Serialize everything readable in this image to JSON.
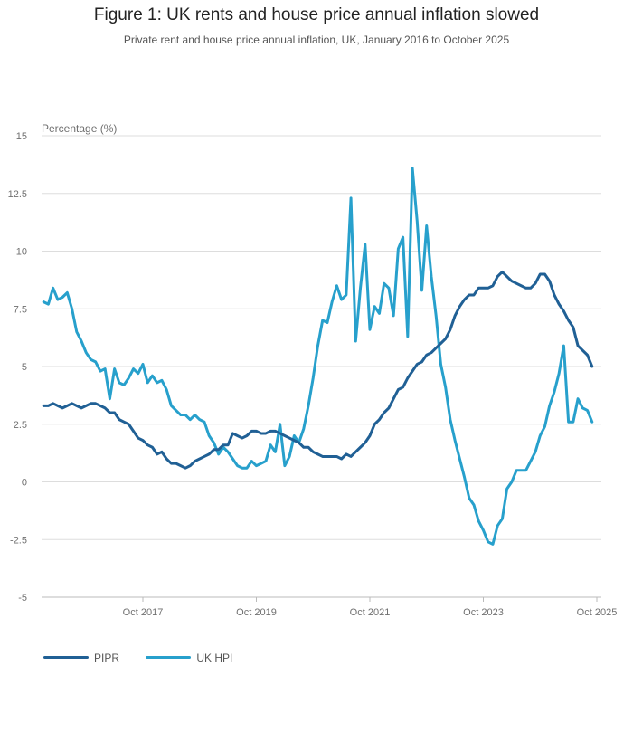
{
  "chart_data": {
    "type": "line",
    "title": "Figure 1: UK rents and house price annual inflation slowed",
    "subtitle": "Private rent and house price annual inflation, UK, January 2016 to October 2025",
    "ylabel": "Percentage (%)",
    "xlabel": "",
    "ylim": [
      -5,
      15
    ],
    "yticks": [
      -5,
      -2.5,
      0,
      2.5,
      5,
      7.5,
      10,
      12.5,
      15
    ],
    "ytick_labels": [
      "-5",
      "-2.5",
      "0",
      "2.5",
      "5",
      "7.5",
      "10",
      "12.5",
      "15"
    ],
    "x_start": "Jan 2016",
    "x_end": "Oct 2025",
    "xtick_labels": [
      "Oct 2017",
      "Oct 2019",
      "Oct 2021",
      "Oct 2023",
      "Oct 2025"
    ],
    "xtick_month_index": [
      21,
      45,
      69,
      93,
      117
    ],
    "grid": true,
    "legend_position": "bottom-left",
    "series": [
      {
        "name": "PIPR",
        "color": "#206095",
        "values": [
          3.3,
          3.3,
          3.4,
          3.3,
          3.2,
          3.3,
          3.4,
          3.3,
          3.2,
          3.3,
          3.4,
          3.4,
          3.3,
          3.2,
          3.0,
          3.0,
          2.7,
          2.6,
          2.5,
          2.2,
          1.9,
          1.8,
          1.6,
          1.5,
          1.2,
          1.3,
          1.0,
          0.8,
          0.8,
          0.7,
          0.6,
          0.7,
          0.9,
          1.0,
          1.1,
          1.2,
          1.4,
          1.4,
          1.6,
          1.6,
          2.1,
          2.0,
          1.9,
          2.0,
          2.2,
          2.2,
          2.1,
          2.1,
          2.2,
          2.2,
          2.1,
          2.0,
          1.9,
          1.8,
          1.7,
          1.5,
          1.5,
          1.3,
          1.2,
          1.1,
          1.1,
          1.1,
          1.1,
          1.0,
          1.2,
          1.1,
          1.3,
          1.5,
          1.7,
          2.0,
          2.5,
          2.7,
          3.0,
          3.2,
          3.6,
          4.0,
          4.1,
          4.5,
          4.8,
          5.1,
          5.2,
          5.5,
          5.6,
          5.8,
          6.0,
          6.2,
          6.6,
          7.2,
          7.6,
          7.9,
          8.1,
          8.1,
          8.4,
          8.4,
          8.4,
          8.5,
          8.9,
          9.1,
          8.9,
          8.7,
          8.6,
          8.5,
          8.4,
          8.4,
          8.6,
          9.0,
          9.0,
          8.7,
          8.1,
          7.7,
          7.4,
          7.0,
          6.7,
          5.9,
          5.7,
          5.5,
          5.0
        ]
      },
      {
        "name": "UK HPI",
        "color": "#27a0cc",
        "values": [
          7.8,
          7.7,
          8.4,
          7.9,
          8.0,
          8.2,
          7.5,
          6.5,
          6.1,
          5.6,
          5.3,
          5.2,
          4.8,
          4.9,
          3.6,
          4.9,
          4.3,
          4.2,
          4.5,
          4.9,
          4.7,
          5.1,
          4.3,
          4.6,
          4.3,
          4.4,
          4.0,
          3.3,
          3.1,
          2.9,
          2.9,
          2.7,
          2.9,
          2.7,
          2.6,
          2.0,
          1.7,
          1.2,
          1.5,
          1.3,
          1.0,
          0.7,
          0.6,
          0.6,
          0.9,
          0.7,
          0.8,
          0.9,
          1.6,
          1.3,
          2.5,
          0.7,
          1.1,
          2.0,
          1.7,
          2.3,
          3.3,
          4.5,
          5.9,
          7.0,
          6.9,
          7.8,
          8.5,
          7.9,
          8.1,
          12.3,
          6.1,
          8.4,
          10.3,
          6.6,
          7.6,
          7.3,
          8.6,
          8.4,
          7.2,
          10.1,
          10.6,
          6.3,
          13.6,
          11.3,
          8.3,
          11.1,
          8.9,
          7.2,
          5.1,
          4.1,
          2.7,
          1.8,
          1.0,
          0.2,
          -0.7,
          -1.0,
          -1.7,
          -2.1,
          -2.6,
          -2.7,
          -1.9,
          -1.6,
          -0.3,
          0.0,
          0.5,
          0.5,
          0.5,
          0.9,
          1.3,
          2.0,
          2.4,
          3.3,
          3.9,
          4.7,
          5.9,
          2.6,
          2.6,
          3.6,
          3.2,
          3.1,
          2.6
        ]
      }
    ]
  }
}
